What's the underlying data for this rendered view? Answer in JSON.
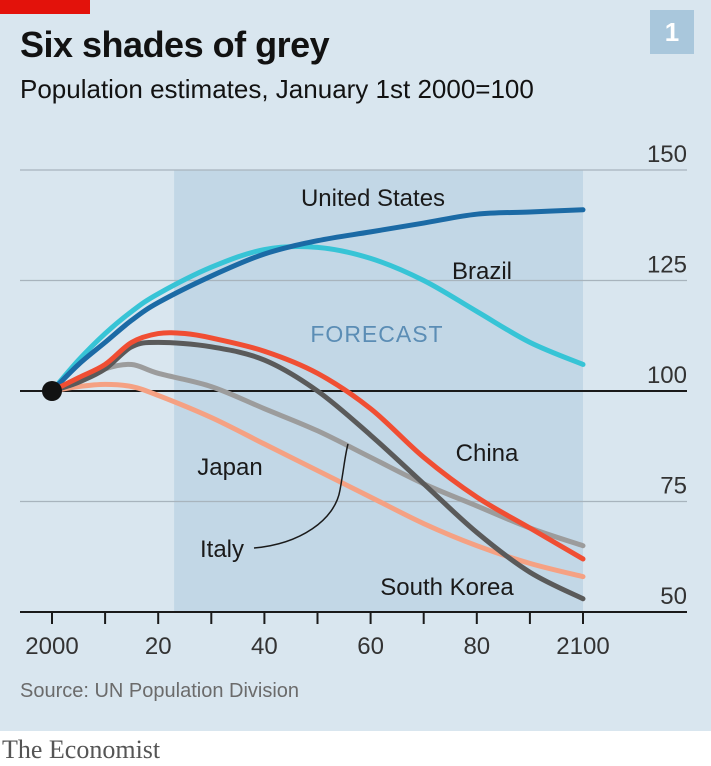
{
  "header": {
    "badge": "1",
    "title": "Six shades of grey",
    "subtitle": "Population estimates, January 1st 2000=100"
  },
  "footer": {
    "source": "Source: UN Population Division",
    "brand": "The Economist"
  },
  "colors": {
    "background": "#d9e6ef",
    "forecast_band": "#c2d7e6",
    "accent_red": "#e3120b"
  },
  "chart_data": {
    "type": "line",
    "title": "Six shades of grey",
    "subtitle": "Population estimates, January 1st 2000=100",
    "xlabel": "",
    "ylabel": "",
    "xlim": [
      2000,
      2100
    ],
    "ylim": [
      50,
      150
    ],
    "x_ticks": [
      2000,
      2020,
      2040,
      2060,
      2080,
      2100
    ],
    "x_tick_labels": [
      "2000",
      "20",
      "40",
      "60",
      "80",
      "2100"
    ],
    "y_ticks": [
      50,
      75,
      100,
      125,
      150
    ],
    "y_tick_labels": [
      "50",
      "75",
      "100",
      "125",
      "150"
    ],
    "gridlines": "horizontal",
    "baseline": 100,
    "forecast_label": "FORECAST",
    "forecast_range": [
      2023,
      2100
    ],
    "start_point": {
      "x": 2000,
      "y": 100
    },
    "series": [
      {
        "name": "United States",
        "color": "#1b6aa5",
        "x": [
          2000,
          2005,
          2010,
          2015,
          2020,
          2030,
          2040,
          2050,
          2060,
          2070,
          2080,
          2090,
          2100
        ],
        "y": [
          100,
          106,
          111,
          116,
          120,
          126,
          131,
          134,
          136,
          138,
          140,
          140.5,
          141
        ]
      },
      {
        "name": "Brazil",
        "color": "#37c4d6",
        "x": [
          2000,
          2005,
          2010,
          2015,
          2020,
          2030,
          2040,
          2050,
          2060,
          2070,
          2080,
          2090,
          2100
        ],
        "y": [
          100,
          107,
          113,
          118,
          122,
          128,
          132,
          132.5,
          130,
          125,
          118,
          111,
          106
        ]
      },
      {
        "name": "China",
        "color": "#f04e33",
        "x": [
          2000,
          2005,
          2010,
          2015,
          2020,
          2025,
          2030,
          2040,
          2050,
          2060,
          2070,
          2080,
          2090,
          2100
        ],
        "y": [
          100,
          103,
          106,
          111,
          113,
          113,
          112,
          109,
          104,
          96,
          85,
          76,
          69,
          62
        ]
      },
      {
        "name": "South Korea",
        "color": "#5a5a5a",
        "x": [
          2000,
          2005,
          2010,
          2015,
          2020,
          2030,
          2040,
          2050,
          2060,
          2070,
          2080,
          2090,
          2100
        ],
        "y": [
          100,
          102,
          105,
          110,
          111,
          110,
          107,
          100,
          90,
          79,
          68,
          59,
          53
        ]
      },
      {
        "name": "Italy",
        "color": "#9c9c9c",
        "x": [
          2000,
          2005,
          2010,
          2015,
          2020,
          2030,
          2040,
          2050,
          2060,
          2070,
          2080,
          2090,
          2100
        ],
        "y": [
          100,
          102,
          105,
          106,
          104,
          101,
          96,
          91,
          85,
          79,
          74,
          69,
          65
        ]
      },
      {
        "name": "Japan",
        "color": "#f5a183",
        "x": [
          2000,
          2005,
          2010,
          2015,
          2020,
          2030,
          2040,
          2050,
          2060,
          2070,
          2080,
          2090,
          2100
        ],
        "y": [
          100,
          101,
          101.5,
          101,
          99,
          94,
          88,
          82,
          76,
          70,
          65,
          61,
          58
        ]
      }
    ]
  }
}
